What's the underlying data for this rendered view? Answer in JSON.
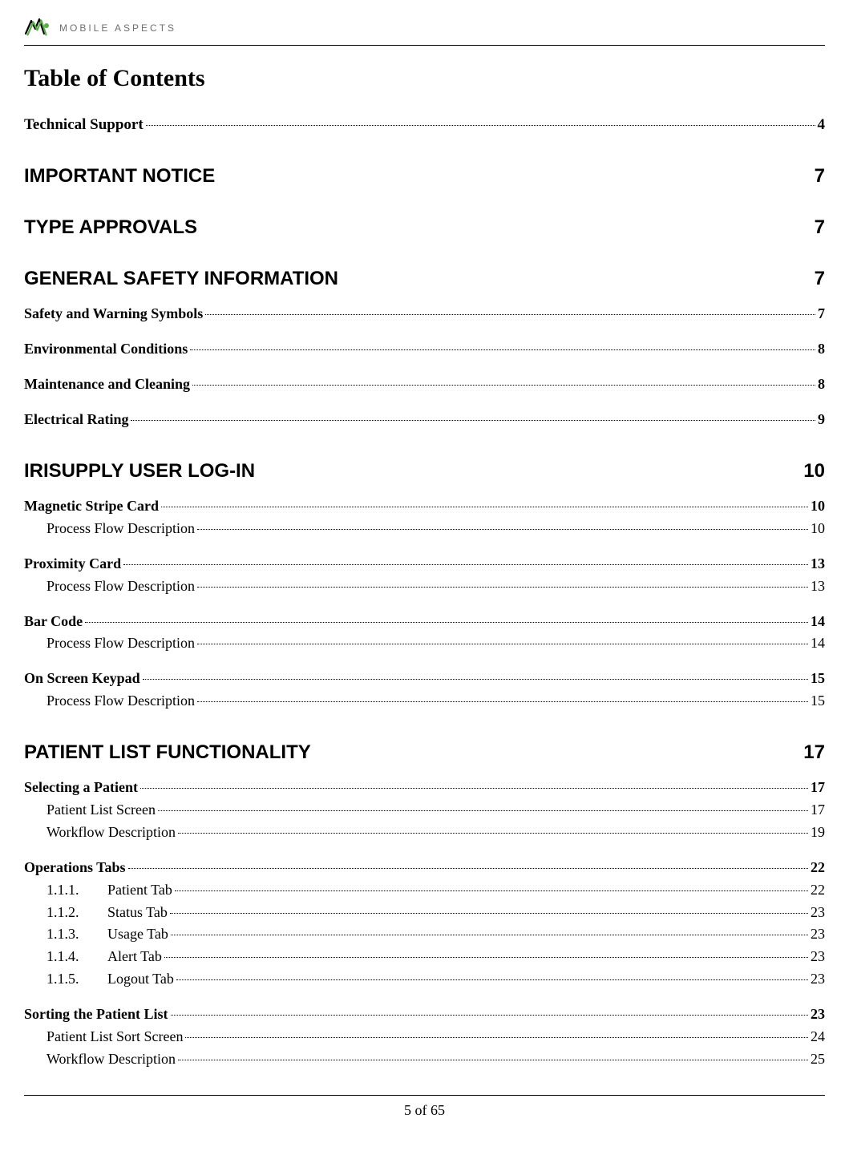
{
  "brand": {
    "name": "MOBILE ASPECTS"
  },
  "title": "Table of Contents",
  "footer": {
    "page_label": "5 of 65"
  },
  "sections": [
    {
      "type": "line",
      "class": "level-1-georgia",
      "label": "Technical Support",
      "page": "4"
    },
    {
      "type": "heading",
      "label": "IMPORTANT NOTICE",
      "page": "7"
    },
    {
      "type": "heading",
      "label": "TYPE APPROVALS",
      "page": "7"
    },
    {
      "type": "heading",
      "label": "GENERAL SAFETY INFORMATION",
      "page": "7"
    },
    {
      "type": "line",
      "class": "level-1",
      "label": "Safety and Warning Symbols",
      "page": "7"
    },
    {
      "type": "line",
      "class": "level-1",
      "label": "Environmental Conditions",
      "page": "8"
    },
    {
      "type": "line",
      "class": "level-1",
      "label": "Maintenance and Cleaning",
      "page": "8"
    },
    {
      "type": "line",
      "class": "level-1",
      "label": "Electrical Rating",
      "page": "9"
    },
    {
      "type": "heading",
      "label": "IRISUPPLY USER LOG-IN",
      "page": "10"
    },
    {
      "type": "group",
      "items": [
        {
          "class": "level-1",
          "label": "Magnetic Stripe Card",
          "page": "10"
        },
        {
          "class": "level-2",
          "label": "Process Flow Description",
          "page": "10"
        }
      ]
    },
    {
      "type": "group",
      "items": [
        {
          "class": "level-1",
          "label": "Proximity Card",
          "page": "13"
        },
        {
          "class": "level-2",
          "label": "Process Flow Description",
          "page": "13"
        }
      ]
    },
    {
      "type": "group",
      "items": [
        {
          "class": "level-1",
          "label": "Bar Code",
          "page": "14"
        },
        {
          "class": "level-2",
          "label": "Process Flow Description",
          "page": "14"
        }
      ]
    },
    {
      "type": "group",
      "items": [
        {
          "class": "level-1",
          "label": "On Screen Keypad",
          "page": "15"
        },
        {
          "class": "level-2",
          "label": "Process Flow Description",
          "page": "15"
        }
      ]
    },
    {
      "type": "heading",
      "label": "PATIENT LIST FUNCTIONALITY",
      "page": "17"
    },
    {
      "type": "group",
      "items": [
        {
          "class": "level-1",
          "label": "Selecting a Patient",
          "page": "17"
        },
        {
          "class": "level-2",
          "label": "Patient List Screen",
          "page": "17"
        },
        {
          "class": "level-2",
          "label": "Workflow Description",
          "page": "19"
        }
      ]
    },
    {
      "type": "group",
      "items": [
        {
          "class": "level-1",
          "label": "Operations Tabs",
          "page": "22"
        },
        {
          "class": "level-2-num",
          "num": "1.1.1.",
          "label": "Patient Tab",
          "page": "22"
        },
        {
          "class": "level-2-num",
          "num": "1.1.2.",
          "label": "Status Tab",
          "page": "23"
        },
        {
          "class": "level-2-num",
          "num": "1.1.3.",
          "label": "Usage Tab",
          "page": "23"
        },
        {
          "class": "level-2-num",
          "num": "1.1.4.",
          "label": "Alert Tab",
          "page": "23"
        },
        {
          "class": "level-2-num",
          "num": "1.1.5.",
          "label": "Logout Tab",
          "page": "23"
        }
      ]
    },
    {
      "type": "group",
      "items": [
        {
          "class": "level-1",
          "label": "Sorting the Patient List",
          "page": "23"
        },
        {
          "class": "level-2",
          "label": "Patient List Sort Screen",
          "page": "24"
        },
        {
          "class": "level-2",
          "label": "Workflow Description",
          "page": "25"
        }
      ]
    }
  ]
}
